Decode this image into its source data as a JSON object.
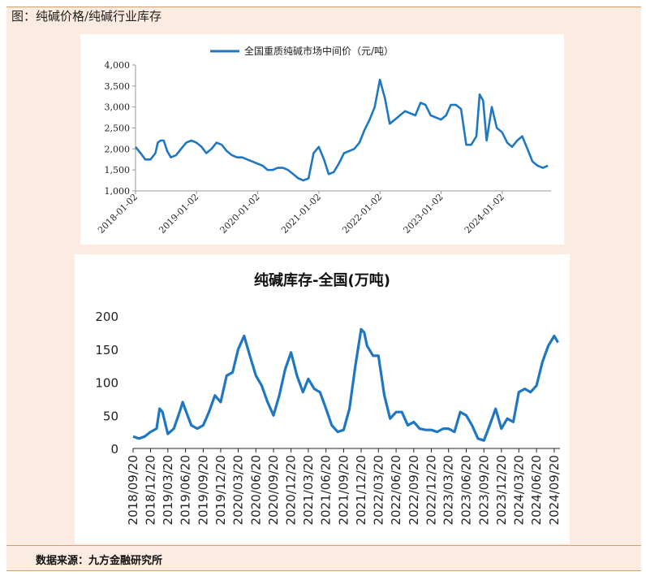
{
  "caption": "图：纯碱价格/纯碱行业库存",
  "source": "数据来源：九方金融研究所",
  "colors": {
    "line": "#1f77c4",
    "frame_bg": "#fcebe1",
    "frame_border": "#d6a06a"
  },
  "chart_data": [
    {
      "type": "line",
      "title": "",
      "legend": "top-center",
      "ylim": [
        1000,
        4000
      ],
      "yticks": [
        "1,000",
        "1,500",
        "2,000",
        "2,500",
        "3,000",
        "3,500",
        "4,000"
      ],
      "xticks": [
        "2018-01-02",
        "2019-01-02",
        "2020-01-02",
        "2021-01-02",
        "2022-01-02",
        "2023-01-02",
        "2024-01-02"
      ],
      "series": [
        {
          "name": "全国重质纯碱市场中间价（元/吨）",
          "x": [
            "2018-01-02",
            "2018-02-01",
            "2018-03-01",
            "2018-04-01",
            "2018-05-01",
            "2018-05-15",
            "2018-06-01",
            "2018-06-20",
            "2018-07-10",
            "2018-08-01",
            "2018-09-01",
            "2018-10-01",
            "2018-11-01",
            "2018-12-01",
            "2019-01-01",
            "2019-02-01",
            "2019-03-01",
            "2019-04-01",
            "2019-05-01",
            "2019-06-01",
            "2019-07-01",
            "2019-08-01",
            "2019-09-01",
            "2019-10-01",
            "2019-11-01",
            "2019-12-01",
            "2020-01-01",
            "2020-02-01",
            "2020-03-01",
            "2020-04-01",
            "2020-05-01",
            "2020-06-01",
            "2020-07-01",
            "2020-08-01",
            "2020-09-01",
            "2020-10-01",
            "2020-11-01",
            "2020-12-01",
            "2021-01-01",
            "2021-02-01",
            "2021-03-01",
            "2021-04-01",
            "2021-05-01",
            "2021-06-01",
            "2021-07-01",
            "2021-08-01",
            "2021-09-01",
            "2021-10-01",
            "2021-11-01",
            "2021-12-01",
            "2022-01-01",
            "2022-02-01",
            "2022-03-01",
            "2022-04-01",
            "2022-05-01",
            "2022-06-01",
            "2022-07-01",
            "2022-08-01",
            "2022-09-01",
            "2022-10-01",
            "2022-11-01",
            "2022-12-01",
            "2023-01-01",
            "2023-02-01",
            "2023-03-01",
            "2023-04-01",
            "2023-05-01",
            "2023-06-01",
            "2023-07-01",
            "2023-08-01",
            "2023-08-20",
            "2023-09-10",
            "2023-10-01",
            "2023-11-01",
            "2023-12-01",
            "2024-01-01",
            "2024-02-01",
            "2024-03-01",
            "2024-04-01",
            "2024-05-01",
            "2024-06-01",
            "2024-07-01",
            "2024-08-01",
            "2024-09-01",
            "2024-10-01"
          ],
          "values": [
            2050,
            1900,
            1750,
            1750,
            1900,
            2150,
            2200,
            2200,
            1950,
            1800,
            1850,
            2000,
            2150,
            2200,
            2150,
            2050,
            1900,
            2000,
            2150,
            2100,
            1950,
            1850,
            1800,
            1800,
            1750,
            1700,
            1650,
            1600,
            1500,
            1500,
            1550,
            1550,
            1500,
            1400,
            1300,
            1250,
            1300,
            1900,
            2050,
            1750,
            1400,
            1450,
            1650,
            1900,
            1950,
            2000,
            2150,
            2450,
            2700,
            3000,
            3650,
            3200,
            2600,
            2700,
            2800,
            2900,
            2850,
            2800,
            3100,
            3050,
            2800,
            2750,
            2700,
            2800,
            3050,
            3050,
            2950,
            2100,
            2100,
            2300,
            3300,
            3150,
            2200,
            3000,
            2500,
            2400,
            2150,
            2050,
            2200,
            2300,
            2000,
            1700,
            1600,
            1550,
            1600
          ]
        }
      ]
    },
    {
      "type": "line",
      "title": "纯碱库存-全国(万吨)",
      "ylim": [
        0,
        200
      ],
      "yticks": [
        "0",
        "50",
        "100",
        "150",
        "200"
      ],
      "xticks": [
        "2018/09/20",
        "2018/12/20",
        "2019/03/20",
        "2019/06/20",
        "2019/09/20",
        "2019/12/20",
        "2020/03/20",
        "2020/06/20",
        "2020/09/20",
        "2020/12/20",
        "2021/03/20",
        "2021/06/20",
        "2021/09/20",
        "2021/12/20",
        "2022/03/20",
        "2022/06/20",
        "2022/09/20",
        "2022/12/20",
        "2023/03/20",
        "2023/06/20",
        "2023/09/20",
        "2023/12/20",
        "2024/03/20",
        "2024/06/20",
        "2024/09/20"
      ],
      "series": [
        {
          "name": "",
          "x": [
            "2018/09/20",
            "2018/10/20",
            "2018/11/20",
            "2018/12/20",
            "2019/01/20",
            "2019/02/05",
            "2019/02/20",
            "2019/03/20",
            "2019/04/20",
            "2019/05/20",
            "2019/06/05",
            "2019/06/20",
            "2019/07/20",
            "2019/08/20",
            "2019/09/20",
            "2019/10/20",
            "2019/11/20",
            "2019/12/20",
            "2020/01/20",
            "2020/02/20",
            "2020/03/20",
            "2020/04/20",
            "2020/05/20",
            "2020/06/20",
            "2020/07/20",
            "2020/08/20",
            "2020/09/20",
            "2020/10/20",
            "2020/11/20",
            "2020/12/20",
            "2021/01/20",
            "2021/02/20",
            "2021/03/20",
            "2021/04/20",
            "2021/05/20",
            "2021/06/20",
            "2021/07/20",
            "2021/08/20",
            "2021/09/20",
            "2021/10/20",
            "2021/11/20",
            "2021/12/20",
            "2022/01/05",
            "2022/01/20",
            "2022/02/20",
            "2022/03/20",
            "2022/04/20",
            "2022/05/20",
            "2022/06/20",
            "2022/07/20",
            "2022/08/20",
            "2022/09/20",
            "2022/10/20",
            "2022/11/20",
            "2022/12/20",
            "2023/01/20",
            "2023/02/20",
            "2023/03/20",
            "2023/04/20",
            "2023/05/20",
            "2023/06/20",
            "2023/07/20",
            "2023/08/20",
            "2023/09/20",
            "2023/10/20",
            "2023/11/20",
            "2023/12/20",
            "2024/01/20",
            "2024/02/20",
            "2024/03/20",
            "2024/04/20",
            "2024/05/20",
            "2024/06/20",
            "2024/07/20",
            "2024/08/20",
            "2024/09/20",
            "2024/10/10"
          ],
          "values": [
            18,
            15,
            18,
            25,
            30,
            60,
            55,
            22,
            30,
            55,
            70,
            58,
            35,
            30,
            35,
            55,
            80,
            70,
            110,
            115,
            150,
            170,
            140,
            110,
            95,
            70,
            50,
            80,
            120,
            145,
            110,
            85,
            105,
            90,
            85,
            60,
            35,
            25,
            28,
            60,
            125,
            180,
            175,
            155,
            140,
            140,
            80,
            45,
            55,
            55,
            35,
            40,
            30,
            28,
            28,
            25,
            30,
            30,
            25,
            55,
            50,
            35,
            15,
            12,
            35,
            60,
            30,
            45,
            40,
            85,
            90,
            85,
            95,
            130,
            155,
            170,
            160
          ]
        }
      ]
    }
  ]
}
